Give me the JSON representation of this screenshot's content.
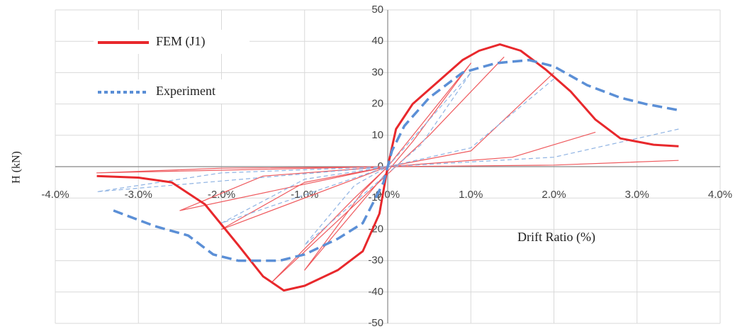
{
  "chart_data": {
    "type": "line",
    "y_label": "H (kN)",
    "annotation": "Drift Ratio (%)",
    "xlim": [
      -4,
      4
    ],
    "ylim": [
      -50,
      50
    ],
    "xticks": [
      {
        "value": -4,
        "label": "-4.0%"
      },
      {
        "value": -3,
        "label": "-3.0%"
      },
      {
        "value": -2,
        "label": "-2.0%"
      },
      {
        "value": -1,
        "label": "-1.0%"
      },
      {
        "value": 0,
        "label": "0.0%"
      },
      {
        "value": 1,
        "label": "1.0%"
      },
      {
        "value": 2,
        "label": "2.0%"
      },
      {
        "value": 3,
        "label": "3.0%"
      },
      {
        "value": 4,
        "label": "4.0%"
      }
    ],
    "yticks": [
      50,
      40,
      30,
      20,
      10,
      0,
      -10,
      -20,
      -30,
      -40,
      -50
    ],
    "grid": true,
    "legend": "upper-left",
    "series": [
      {
        "name": "FEM (J1)",
        "color": "#e8282c",
        "width": 3,
        "dash": false,
        "x": [
          -3.5,
          -3.0,
          -2.6,
          -2.2,
          -1.8,
          -1.5,
          -1.25,
          -1.0,
          -0.6,
          -0.3,
          -0.1,
          0,
          0.1,
          0.3,
          0.6,
          0.9,
          1.1,
          1.35,
          1.6,
          1.9,
          2.2,
          2.5,
          2.8,
          3.2,
          3.5
        ],
        "values": [
          -3,
          -3.5,
          -5,
          -12,
          -25,
          -35,
          -39.5,
          -38,
          -33,
          -27,
          -15,
          0,
          12,
          20,
          27,
          34,
          37,
          39,
          37,
          31,
          24,
          15,
          9,
          7,
          6.5
        ]
      },
      {
        "color": "#ef5a5e",
        "width": 1.2,
        "dash": false,
        "x": [
          0,
          1.0,
          0.3,
          -1.0,
          -0.3,
          0,
          0,
          1.4,
          0.5,
          -1.4,
          -0.4,
          0,
          0,
          2.0,
          1.0,
          0,
          -2.0,
          -1.0,
          0,
          0,
          2.5,
          1.5,
          0,
          -2.5,
          -1.5,
          0,
          0,
          3.5,
          2.0,
          0,
          -3.5,
          -2.0,
          0
        ],
        "values": [
          0,
          33,
          8,
          -33,
          -8,
          0,
          null,
          35,
          10,
          -37,
          -10,
          0,
          null,
          30,
          5,
          0,
          -20,
          -5,
          0,
          null,
          11,
          3,
          0,
          -14,
          -3,
          0,
          null,
          2,
          0.5,
          0,
          -2,
          -0.5,
          0
        ]
      },
      {
        "name": "Experiment",
        "color": "#5b8fd6",
        "width": 3.5,
        "dash": true,
        "x": [
          -3.3,
          -2.8,
          -2.4,
          -2.1,
          -1.8,
          -1.3,
          -1.0,
          -0.6,
          -0.3,
          -0.05,
          0.05,
          0.2,
          0.5,
          0.9,
          1.3,
          1.7,
          2.0,
          2.4,
          2.8,
          3.1,
          3.5
        ],
        "values": [
          -14,
          -19,
          -22,
          -28,
          -30,
          -30,
          -28,
          -23,
          -18,
          -5,
          5,
          13,
          22,
          30,
          33,
          34,
          32,
          26,
          22,
          20,
          18
        ]
      },
      {
        "color": "#8fb3e3",
        "width": 1.2,
        "dash": true,
        "x": [
          0,
          1.0,
          0.4,
          -1.0,
          -0.4,
          0,
          0,
          2.0,
          1.0,
          0,
          -2.0,
          -1.0,
          0,
          0,
          3.5,
          2.0,
          0,
          -3.5,
          -2.0,
          0
        ],
        "values": [
          0,
          30,
          7,
          -25,
          -6,
          0,
          null,
          28,
          6,
          0,
          -18,
          -4,
          0,
          null,
          12,
          3,
          0,
          -8,
          -2,
          0
        ]
      }
    ]
  }
}
